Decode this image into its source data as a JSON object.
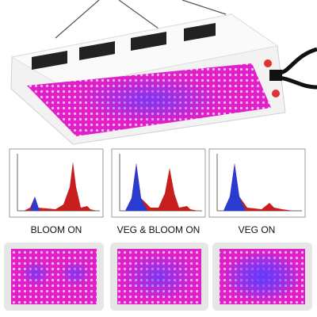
{
  "labels": [
    "BLOOM ON",
    "VEG & BLOOM ON",
    "VEG ON"
  ]
}
